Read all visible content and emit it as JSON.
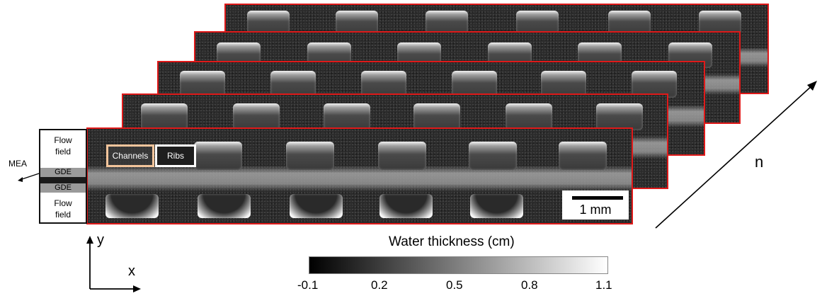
{
  "layer_labels": {
    "flow_field_top": "Flow\nfield",
    "gde_top": "GDE",
    "gde_bottom": "GDE",
    "flow_field_bottom": "Flow\nfield",
    "mea": "MEA"
  },
  "region_tags": {
    "channels": "Channels",
    "ribs": "Ribs"
  },
  "scale_bar": {
    "label": "1 mm"
  },
  "stack_axis_label": "n",
  "coordinate_axes": {
    "y": "y",
    "x": "x"
  },
  "colorbar": {
    "title": "Water thickness (cm)",
    "ticks": [
      "-0.1",
      "0.2",
      "0.5",
      "0.8",
      "1.1"
    ]
  },
  "colors": {
    "frame_border": "#e01a1a",
    "channels_tag_border": "#f2c49b"
  }
}
